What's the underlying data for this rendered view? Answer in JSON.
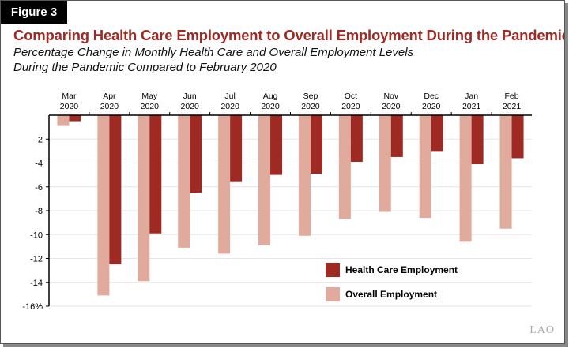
{
  "figure_label": "Figure 3",
  "logo": "LAO",
  "chart_data": {
    "type": "bar",
    "title": "Comparing Health Care Employment to Overall Employment During the Pandemic",
    "subtitle": [
      "Percentage Change in Monthly Health Care and Overall Employment Levels",
      "During the Pandemic Compared to February 2020"
    ],
    "categories": [
      [
        "Mar",
        "2020"
      ],
      [
        "Apr",
        "2020"
      ],
      [
        "May",
        "2020"
      ],
      [
        "Jun",
        "2020"
      ],
      [
        "Jul",
        "2020"
      ],
      [
        "Aug",
        "2020"
      ],
      [
        "Sep",
        "2020"
      ],
      [
        "Oct",
        "2020"
      ],
      [
        "Nov",
        "2020"
      ],
      [
        "Dec",
        "2020"
      ],
      [
        "Jan",
        "2021"
      ],
      [
        "Feb",
        "2021"
      ]
    ],
    "series": [
      {
        "name": "Overall Employment",
        "color": "#e0aa9d",
        "values": [
          -0.9,
          -15.1,
          -13.9,
          -11.1,
          -11.6,
          -10.9,
          -10.1,
          -8.7,
          -8.1,
          -8.6,
          -10.6,
          -9.5
        ]
      },
      {
        "name": "Health Care Employment",
        "color": "#9e2a23",
        "values": [
          -0.5,
          -12.5,
          -9.9,
          -6.5,
          -5.6,
          -5.0,
          -4.9,
          -3.9,
          -3.5,
          -3.0,
          -4.1,
          -3.6
        ]
      }
    ],
    "yticks": [
      {
        "v": -2,
        "label": "-2"
      },
      {
        "v": -4,
        "label": "-4"
      },
      {
        "v": -6,
        "label": "-6"
      },
      {
        "v": -8,
        "label": "-8"
      },
      {
        "v": -10,
        "label": "-10"
      },
      {
        "v": -12,
        "label": "-12"
      },
      {
        "v": -14,
        "label": "-14"
      },
      {
        "v": -16,
        "label": "-16%"
      }
    ],
    "ylim": [
      -16,
      0
    ],
    "grid": true,
    "legend_placement": "bottom-right",
    "legend_order": [
      "Health Care Employment",
      "Overall Employment"
    ]
  }
}
